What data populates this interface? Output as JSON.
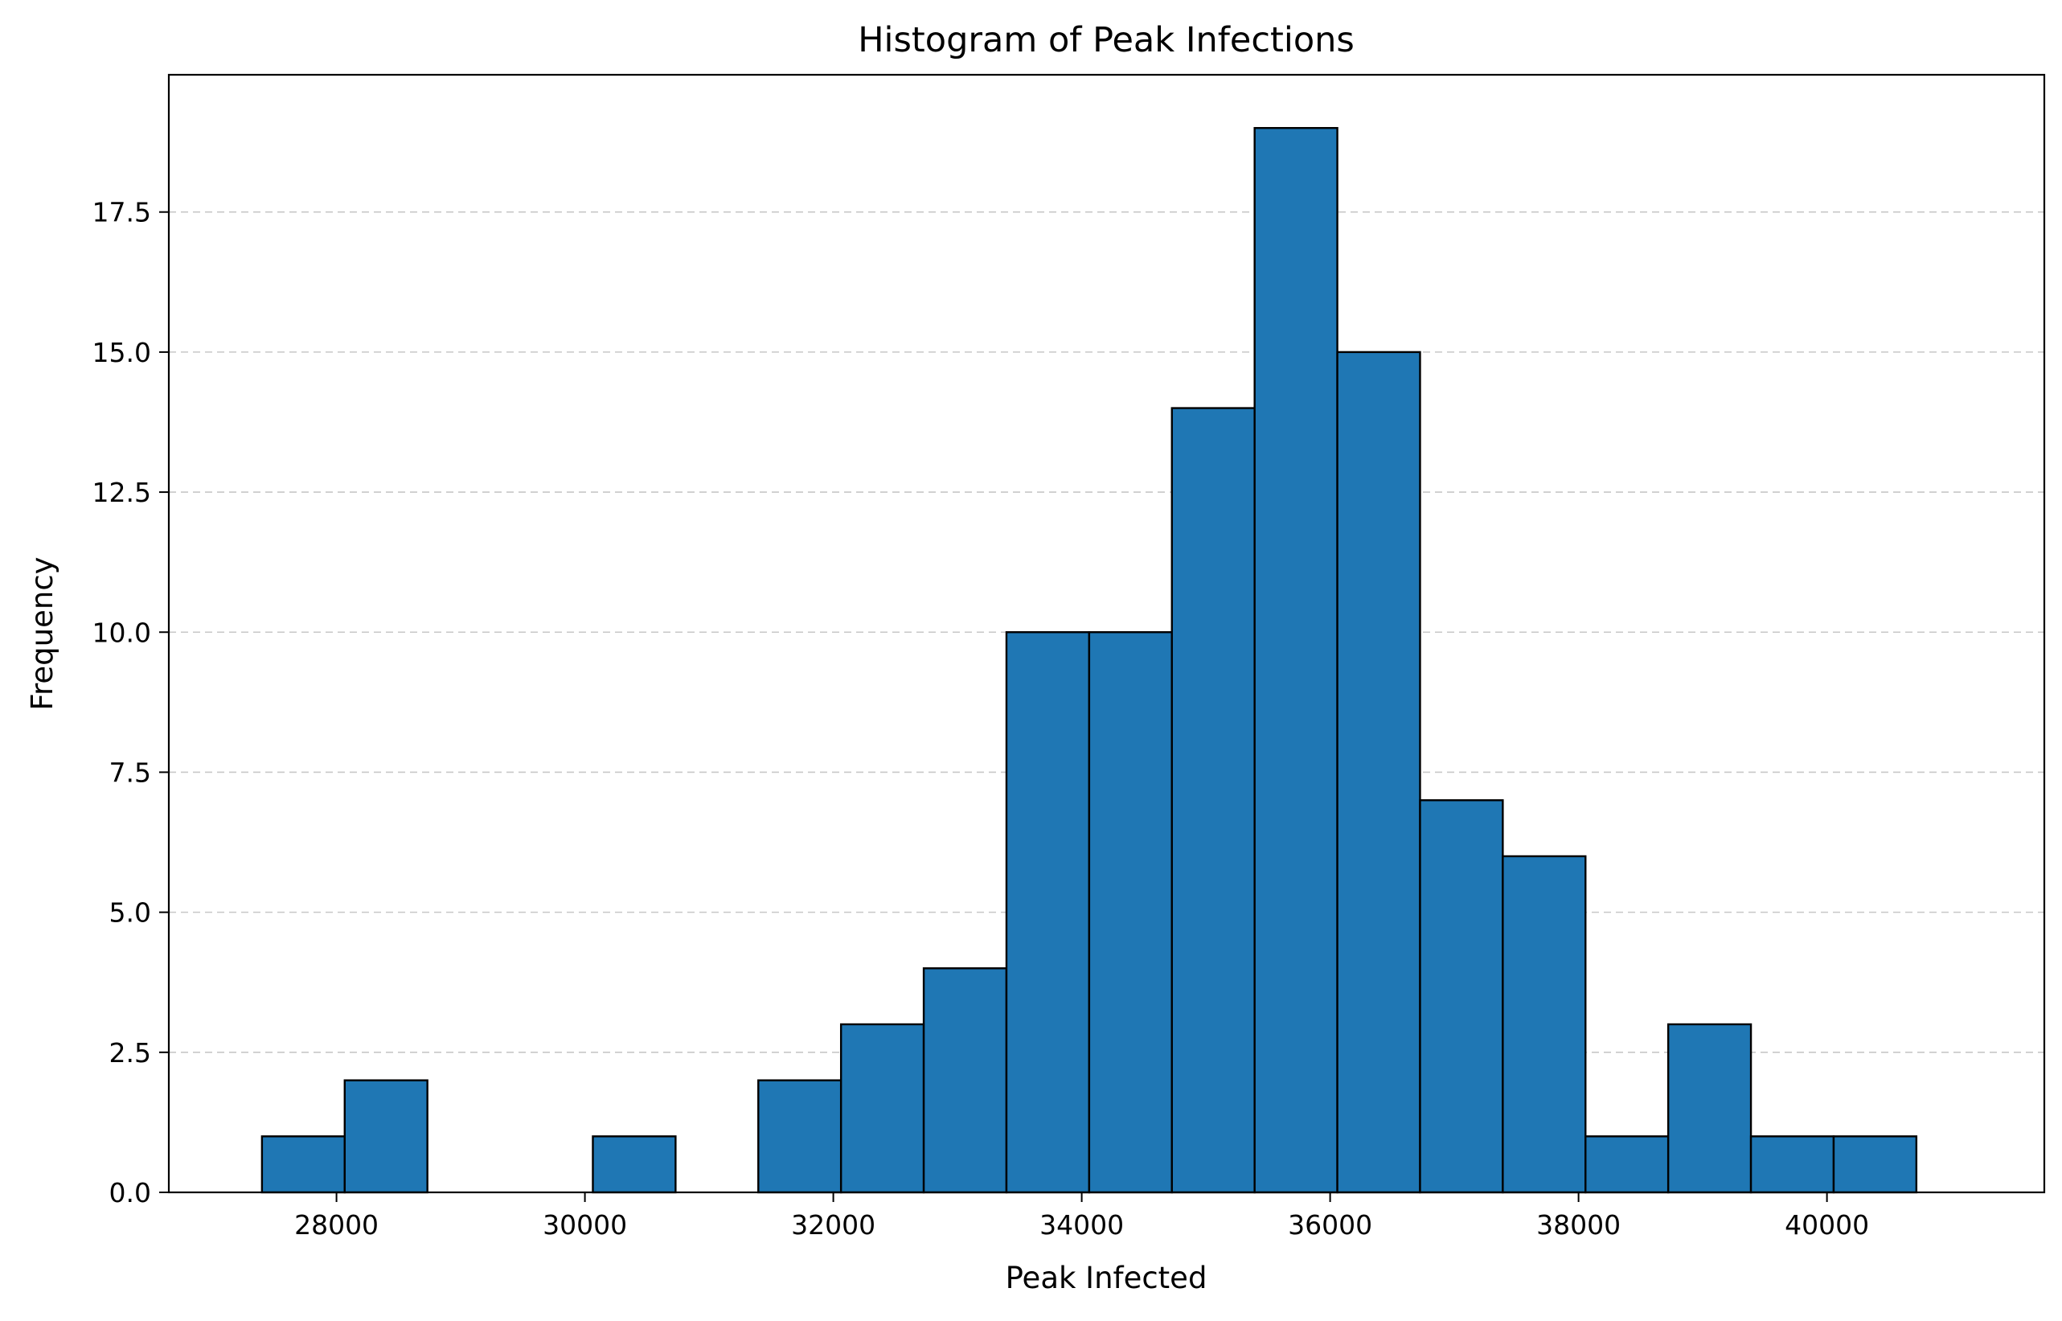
{
  "chart_data": {
    "type": "bar",
    "title": "Histogram of Peak Infections",
    "xlabel": "Peak Infected",
    "ylabel": "Frequency",
    "xlim": [
      26650,
      41750
    ],
    "ylim": [
      0,
      19.95
    ],
    "x_ticks": [
      28000,
      30000,
      32000,
      34000,
      36000,
      38000,
      40000
    ],
    "y_ticks": [
      0.0,
      2.5,
      5.0,
      7.5,
      10.0,
      12.5,
      15.0,
      17.5
    ],
    "x_tick_labels": [
      "28000",
      "30000",
      "32000",
      "34000",
      "36000",
      "38000",
      "40000"
    ],
    "y_tick_labels": [
      "0.0",
      "2.5",
      "5.0",
      "7.5",
      "10.0",
      "12.5",
      "15.0",
      "17.5"
    ],
    "grid": "y-dashed",
    "bins": {
      "edges": [
        27400,
        28066,
        28732,
        29398,
        30064,
        30730,
        31396,
        32062,
        32728,
        33394,
        34060,
        34726,
        35392,
        36058,
        36724,
        37390,
        38056,
        38722,
        39388,
        40054,
        40720
      ],
      "counts": [
        1,
        2,
        0,
        0,
        1,
        0,
        2,
        3,
        4,
        10,
        10,
        14,
        19,
        15,
        7,
        6,
        1,
        3,
        1,
        1
      ]
    },
    "bar_color": "#1f77b4",
    "edge_color": "#000000"
  }
}
